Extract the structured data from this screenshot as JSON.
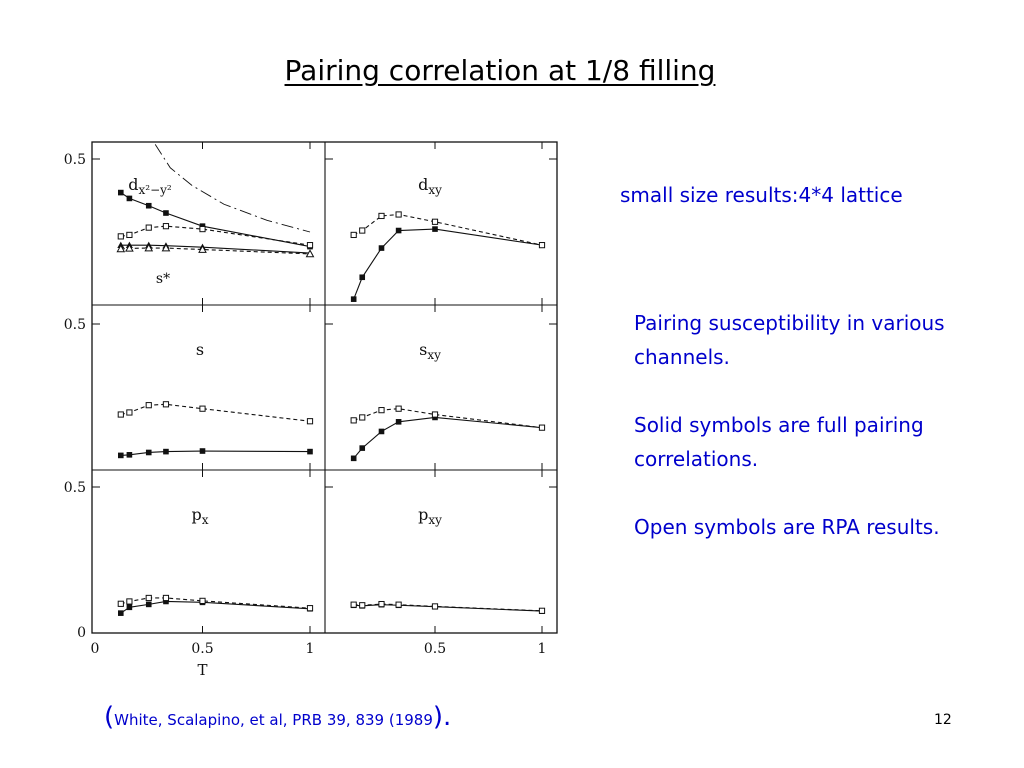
{
  "slide": {
    "title": "Pairing correlation at 1/8 filling",
    "size_note": "small size results:4*4 lattice",
    "notes": [
      "Pairing susceptibility in various channels.",
      "Solid symbols are full pairing correlations.",
      "Open symbols are RPA results."
    ],
    "citation": {
      "open": "(",
      "text": "White, Scalapino, et al, PRB 39, 839 (1989",
      "close": ")."
    },
    "page_number": "12",
    "text_color": "#0000cc"
  },
  "chart_data": {
    "type": "line",
    "xlabel": "T",
    "xlim": [
      0,
      1
    ],
    "ylim": [
      0,
      0.5
    ],
    "x_ticks": [
      "0",
      "0.5",
      "1"
    ],
    "y_ticks": [
      "0",
      "0.5"
    ],
    "panels": [
      {
        "id": "dx2y2",
        "label": "d",
        "label_sub": "x²−y²",
        "label_extra": "s*",
        "series": [
          {
            "style": "solid",
            "marker": "filled-square",
            "x": [
              0.12,
              0.16,
              0.25,
              0.33,
              0.5,
              1.0
            ],
            "y": [
              0.385,
              0.365,
              0.34,
              0.315,
              0.27,
              0.2
            ]
          },
          {
            "style": "dashed",
            "marker": "open-square",
            "x": [
              0.12,
              0.16,
              0.25,
              0.33,
              0.5,
              1.0
            ],
            "y": [
              0.235,
              0.24,
              0.265,
              0.27,
              0.26,
              0.205
            ]
          },
          {
            "style": "solid",
            "marker": "filled-triangle",
            "x": [
              0.12,
              0.16,
              0.25,
              0.33,
              0.5,
              1.0
            ],
            "y": [
              0.205,
              0.205,
              0.205,
              0.203,
              0.198,
              0.178
            ]
          },
          {
            "style": "dashed",
            "marker": "open-triangle",
            "x": [
              0.12,
              0.16,
              0.25,
              0.33,
              0.5,
              1.0
            ],
            "y": [
              0.192,
              0.194,
              0.195,
              0.195,
              0.19,
              0.175
            ]
          },
          {
            "style": "dashdot",
            "marker": "none",
            "x": [
              0.28,
              0.35,
              0.45,
              0.6,
              0.8,
              1.0
            ],
            "y": [
              0.55,
              0.47,
              0.41,
              0.345,
              0.29,
              0.25
            ]
          }
        ]
      },
      {
        "id": "dxy",
        "label": "d",
        "label_sub": "xy",
        "label_extra": "",
        "series": [
          {
            "style": "solid",
            "marker": "filled-square",
            "x": [
              0.12,
              0.16,
              0.25,
              0.33,
              0.5,
              1.0
            ],
            "y": [
              0.02,
              0.095,
              0.195,
              0.255,
              0.26,
              0.205
            ]
          },
          {
            "style": "dashed",
            "marker": "open-square",
            "x": [
              0.12,
              0.16,
              0.25,
              0.33,
              0.5,
              1.0
            ],
            "y": [
              0.24,
              0.255,
              0.305,
              0.31,
              0.285,
              0.205
            ]
          }
        ]
      },
      {
        "id": "s",
        "label": "s",
        "label_sub": "",
        "label_extra": "",
        "series": [
          {
            "style": "solid",
            "marker": "filled-square",
            "x": [
              0.12,
              0.16,
              0.25,
              0.33,
              0.5,
              1.0
            ],
            "y": [
              0.05,
              0.052,
              0.06,
              0.063,
              0.065,
              0.063
            ]
          },
          {
            "style": "dashed",
            "marker": "open-square",
            "x": [
              0.12,
              0.16,
              0.25,
              0.33,
              0.5,
              1.0
            ],
            "y": [
              0.19,
              0.197,
              0.222,
              0.225,
              0.21,
              0.167
            ]
          }
        ]
      },
      {
        "id": "sxy",
        "label": "s",
        "label_sub": "xy",
        "label_extra": "",
        "series": [
          {
            "style": "solid",
            "marker": "filled-square",
            "x": [
              0.12,
              0.16,
              0.25,
              0.33,
              0.5,
              1.0
            ],
            "y": [
              0.04,
              0.075,
              0.132,
              0.165,
              0.18,
              0.145
            ]
          },
          {
            "style": "dashed",
            "marker": "open-square",
            "x": [
              0.12,
              0.16,
              0.25,
              0.33,
              0.5,
              1.0
            ],
            "y": [
              0.17,
              0.18,
              0.205,
              0.21,
              0.19,
              0.145
            ]
          }
        ]
      },
      {
        "id": "px",
        "label": "p",
        "label_sub": "x",
        "label_extra": "",
        "series": [
          {
            "style": "solid",
            "marker": "filled-square",
            "x": [
              0.12,
              0.16,
              0.25,
              0.33,
              0.5,
              1.0
            ],
            "y": [
              0.068,
              0.088,
              0.098,
              0.108,
              0.105,
              0.083
            ]
          },
          {
            "style": "dashed",
            "marker": "open-square",
            "x": [
              0.12,
              0.16,
              0.25,
              0.33,
              0.5,
              1.0
            ],
            "y": [
              0.1,
              0.108,
              0.12,
              0.12,
              0.11,
              0.085
            ]
          }
        ]
      },
      {
        "id": "pxy",
        "label": "p",
        "label_sub": "xy",
        "label_extra": "",
        "series": [
          {
            "style": "solid",
            "marker": "filled-square",
            "x": [
              0.12,
              0.16,
              0.25,
              0.33,
              0.5,
              1.0
            ],
            "y": [
              0.095,
              0.093,
              0.097,
              0.095,
              0.09,
              0.075
            ]
          },
          {
            "style": "dashed",
            "marker": "open-square",
            "x": [
              0.12,
              0.16,
              0.25,
              0.33,
              0.5,
              1.0
            ],
            "y": [
              0.097,
              0.095,
              0.099,
              0.097,
              0.091,
              0.076
            ]
          }
        ]
      }
    ]
  }
}
